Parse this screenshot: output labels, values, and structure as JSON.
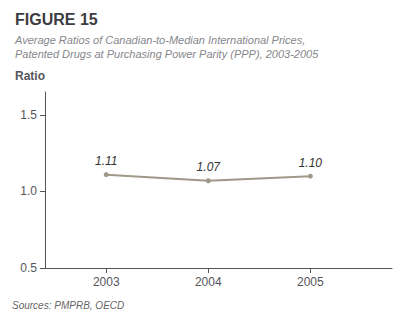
{
  "chart_data": {
    "type": "line",
    "title": "FIGURE 15",
    "subtitle": [
      "Average Ratios of Canadian-to-Median International Prices,",
      "Patented Drugs at Purchasing Power Parity (PPP), 2003-2005"
    ],
    "ylabel": "Ratio",
    "x": [
      2003,
      2004,
      2005
    ],
    "values": [
      1.11,
      1.07,
      1.1
    ],
    "value_labels": [
      "1.11",
      "1.07",
      "1.10"
    ],
    "data_labels": true,
    "color": "#a09888",
    "xlim": [
      2002.4,
      2005.8
    ],
    "xticks": [
      2003,
      2004,
      2005
    ],
    "ylim": [
      0.5,
      1.65
    ],
    "yticks": [
      0.5,
      {
        "value": 1.0,
        "label": "1.0"
      },
      1.5
    ],
    "grid": false,
    "annotations": [
      "Sources: PMPRB, OECD"
    ]
  }
}
